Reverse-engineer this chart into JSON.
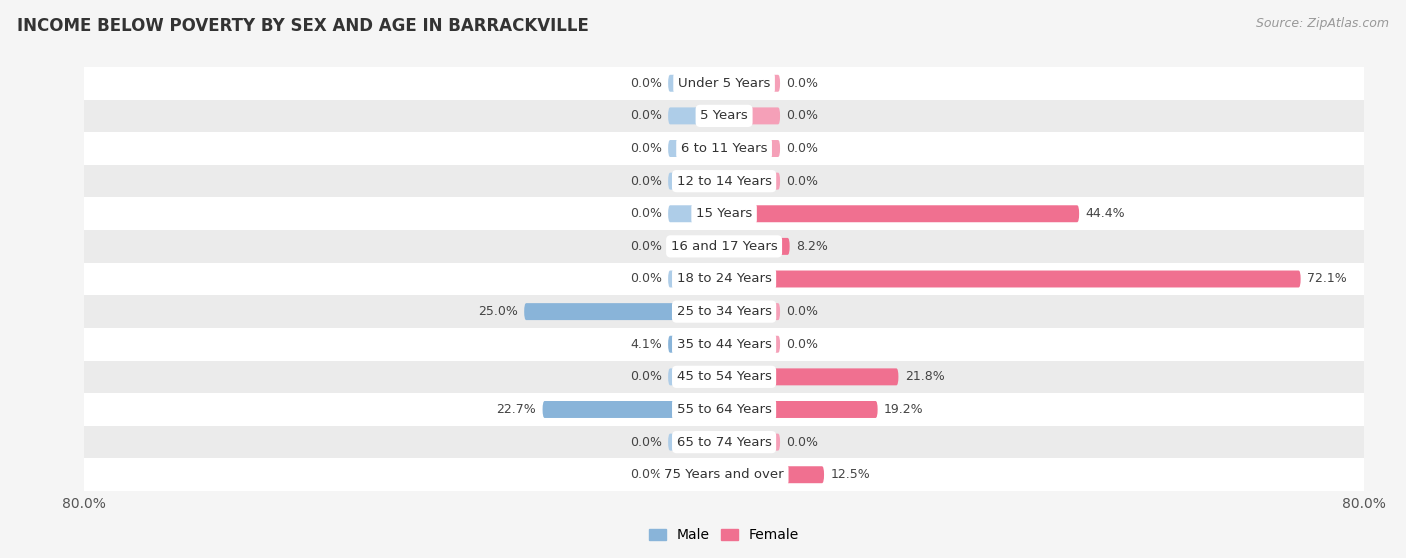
{
  "title": "INCOME BELOW POVERTY BY SEX AND AGE IN BARRACKVILLE",
  "source": "Source: ZipAtlas.com",
  "categories": [
    "Under 5 Years",
    "5 Years",
    "6 to 11 Years",
    "12 to 14 Years",
    "15 Years",
    "16 and 17 Years",
    "18 to 24 Years",
    "25 to 34 Years",
    "35 to 44 Years",
    "45 to 54 Years",
    "55 to 64 Years",
    "65 to 74 Years",
    "75 Years and over"
  ],
  "male": [
    0.0,
    0.0,
    0.0,
    0.0,
    0.0,
    0.0,
    0.0,
    25.0,
    4.1,
    0.0,
    22.7,
    0.0,
    0.0
  ],
  "female": [
    0.0,
    0.0,
    0.0,
    0.0,
    44.4,
    8.2,
    72.1,
    0.0,
    0.0,
    21.8,
    19.2,
    0.0,
    12.5
  ],
  "male_color": "#89b4d9",
  "female_color": "#f07090",
  "male_color_light": "#aecde8",
  "female_color_light": "#f5a0b8",
  "xlim": 80.0,
  "min_bar": 7.0,
  "bar_height": 0.52,
  "background_color": "#f5f5f5",
  "row_bg_even": "#ffffff",
  "row_bg_odd": "#ebebeb",
  "title_fontsize": 12,
  "source_fontsize": 9,
  "label_fontsize": 9,
  "category_fontsize": 9.5,
  "legend_fontsize": 10
}
